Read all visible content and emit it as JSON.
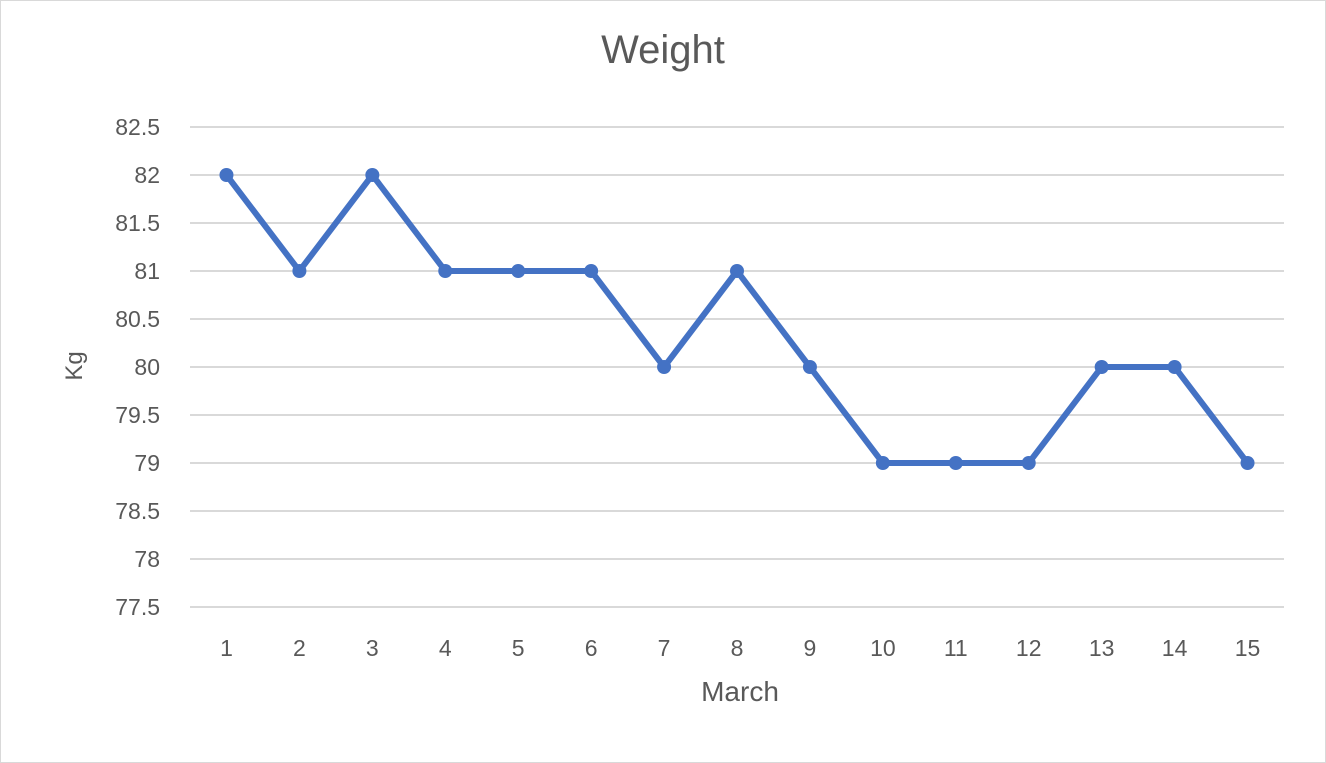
{
  "chart_data": {
    "type": "line",
    "title": "Weight",
    "xlabel": "March",
    "ylabel": "Kg",
    "x": [
      1,
      2,
      3,
      4,
      5,
      6,
      7,
      8,
      9,
      10,
      11,
      12,
      13,
      14,
      15
    ],
    "series": [
      {
        "values": [
          82,
          81,
          82,
          81,
          81,
          81,
          80,
          81,
          80,
          79,
          79,
          79,
          80,
          80,
          79
        ],
        "color": "#4472c4"
      }
    ],
    "yticks": [
      "77.5",
      "78",
      "78.5",
      "79",
      "79.5",
      "80",
      "80.5",
      "81",
      "81.5",
      "82",
      "82.5"
    ],
    "ylim": [
      77.5,
      82.5
    ],
    "grid": true,
    "legend": "none",
    "gridline_color": "#d9d9d9"
  }
}
